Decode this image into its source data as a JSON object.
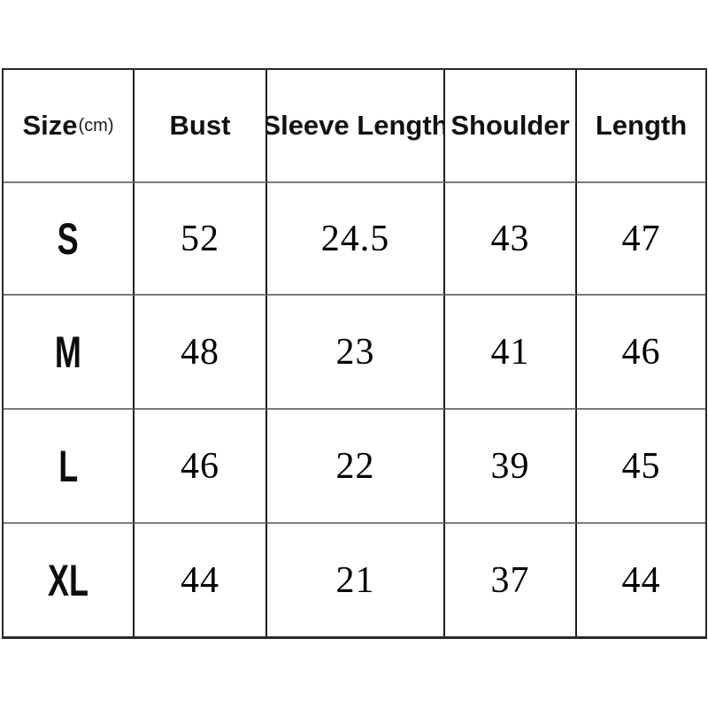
{
  "size_chart": {
    "header": {
      "size_label": "Size",
      "size_unit": "(cm)",
      "columns": [
        "Bust",
        "Sleeve Length",
        "Shoulder",
        "Length"
      ]
    },
    "rows": [
      {
        "size": "S",
        "values": [
          "52",
          "24.5",
          "43",
          "47"
        ]
      },
      {
        "size": "M",
        "values": [
          "48",
          "23",
          "41",
          "46"
        ]
      },
      {
        "size": "L",
        "values": [
          "46",
          "22",
          "39",
          "45"
        ]
      },
      {
        "size": "XL",
        "values": [
          "44",
          "21",
          "37",
          "44"
        ]
      }
    ]
  },
  "colors": {
    "background": "#ffffff",
    "vertical_border": "#1d1d1d",
    "horizontal_border": "#7a7a7a",
    "text": "#111111"
  },
  "chart_data": {
    "type": "table",
    "title": "",
    "columns": [
      "Size(cm)",
      "Bust",
      "Sleeve Length",
      "Shoulder",
      "Length"
    ],
    "unit": "cm",
    "rows": [
      [
        "S",
        52,
        24.5,
        43,
        47
      ],
      [
        "M",
        48,
        23,
        41,
        46
      ],
      [
        "L",
        46,
        22,
        39,
        45
      ],
      [
        "XL",
        44,
        21,
        37,
        44
      ]
    ]
  }
}
